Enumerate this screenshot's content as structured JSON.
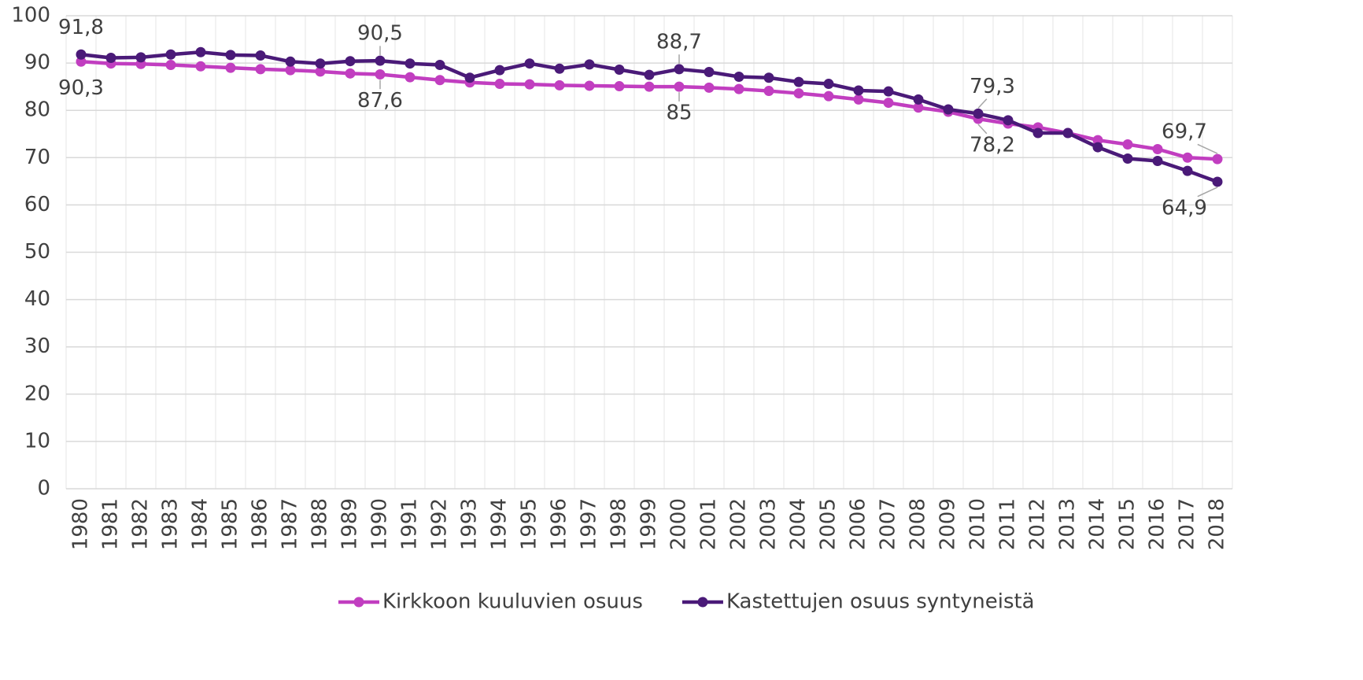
{
  "chart_data": {
    "type": "line",
    "categories": [
      "1980",
      "1981",
      "1982",
      "1983",
      "1984",
      "1985",
      "1986",
      "1987",
      "1988",
      "1989",
      "1990",
      "1991",
      "1992",
      "1993",
      "1994",
      "1995",
      "1996",
      "1997",
      "1998",
      "1999",
      "2000",
      "2001",
      "2002",
      "2003",
      "2004",
      "2005",
      "2006",
      "2007",
      "2008",
      "2009",
      "2010",
      "2011",
      "2012",
      "2013",
      "2014",
      "2015",
      "2016",
      "2017",
      "2018"
    ],
    "series": [
      {
        "name": "Kirkkoon kuuluvien osuus",
        "color": "#c13ec0",
        "values": [
          90.3,
          89.9,
          89.8,
          89.6,
          89.3,
          89.0,
          88.7,
          88.5,
          88.2,
          87.8,
          87.6,
          87.0,
          86.4,
          85.9,
          85.6,
          85.5,
          85.3,
          85.2,
          85.1,
          85.0,
          85.0,
          84.8,
          84.5,
          84.1,
          83.6,
          83.0,
          82.3,
          81.6,
          80.6,
          79.7,
          78.2,
          77.2,
          76.4,
          75.2,
          73.7,
          72.8,
          71.8,
          70.0,
          69.7
        ],
        "value_labels": [
          "90,3",
          null,
          null,
          null,
          null,
          null,
          null,
          null,
          null,
          null,
          "87,6",
          null,
          null,
          null,
          null,
          null,
          null,
          null,
          null,
          null,
          "85",
          null,
          null,
          null,
          null,
          null,
          null,
          null,
          null,
          null,
          "78,2",
          null,
          null,
          null,
          null,
          null,
          null,
          null,
          "69,7"
        ]
      },
      {
        "name": "Kastettujen osuus syntyneistä",
        "color": "#4a1a78",
        "values": [
          91.8,
          91.1,
          91.2,
          91.8,
          92.3,
          91.7,
          91.6,
          90.3,
          89.9,
          90.4,
          90.5,
          89.9,
          89.6,
          86.9,
          88.5,
          89.9,
          88.8,
          89.7,
          88.6,
          87.5,
          88.7,
          88.1,
          87.1,
          86.9,
          86.0,
          85.6,
          84.2,
          84.0,
          82.3,
          80.2,
          79.3,
          77.9,
          75.2,
          75.2,
          72.2,
          69.8,
          69.3,
          67.2,
          64.9
        ],
        "value_labels": [
          "91,8",
          null,
          null,
          null,
          null,
          null,
          null,
          null,
          null,
          null,
          "90,5",
          null,
          null,
          null,
          null,
          null,
          null,
          null,
          null,
          null,
          "88,7",
          null,
          null,
          null,
          null,
          null,
          null,
          null,
          null,
          null,
          "79,3",
          null,
          null,
          null,
          null,
          null,
          null,
          null,
          "64,9"
        ]
      }
    ],
    "ylim": [
      0,
      100
    ],
    "yticks": [
      0,
      10,
      20,
      30,
      40,
      50,
      60,
      70,
      80,
      90,
      100
    ],
    "grid": true,
    "legend": "bottom"
  }
}
